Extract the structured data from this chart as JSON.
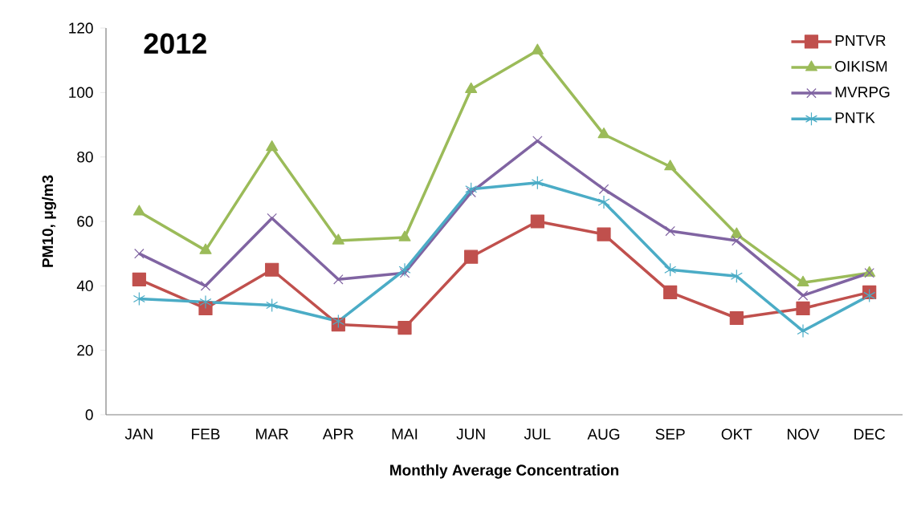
{
  "chart_data": {
    "type": "line",
    "title": "2012",
    "xlabel": "Monthly Average Concentration",
    "ylabel": "PM10, μg/m3",
    "categories": [
      "JAN",
      "FEB",
      "MAR",
      "APR",
      "MAI",
      "JUN",
      "JUL",
      "AUG",
      "SEP",
      "OKT",
      "NOV",
      "DEC"
    ],
    "series": [
      {
        "name": "PNTVR",
        "color": "#c0504d",
        "marker": "square",
        "values": [
          42,
          33,
          45,
          28,
          27,
          49,
          60,
          56,
          38,
          30,
          33,
          38
        ]
      },
      {
        "name": "OIKISM",
        "color": "#9bbb59",
        "marker": "triangle",
        "values": [
          63,
          51,
          83,
          54,
          55,
          101,
          113,
          87,
          77,
          56,
          41,
          44
        ]
      },
      {
        "name": "MVRPG",
        "color": "#8064a2",
        "marker": "cross",
        "values": [
          50,
          40,
          61,
          42,
          44,
          69,
          85,
          70,
          57,
          54,
          37,
          44
        ]
      },
      {
        "name": "PNTK",
        "color": "#4bacc6",
        "marker": "cross",
        "values": [
          36,
          35,
          34,
          29,
          45,
          70,
          72,
          66,
          45,
          43,
          26,
          37
        ]
      }
    ],
    "ylim": [
      0,
      120
    ],
    "yticks": [
      0,
      20,
      40,
      60,
      80,
      100,
      120
    ],
    "grid": false,
    "legend": "top right",
    "line_style": "solid"
  }
}
